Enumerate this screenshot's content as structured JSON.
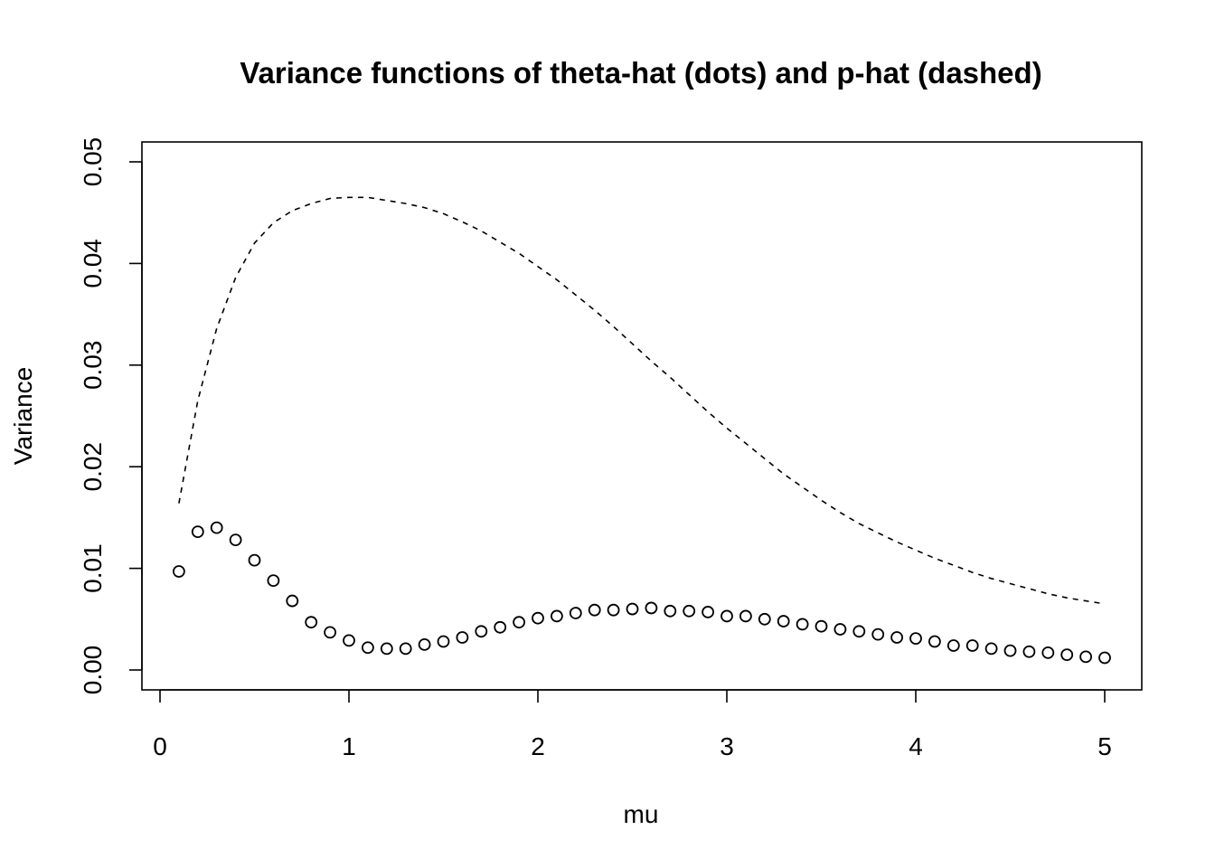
{
  "chart_data": {
    "type": "scatter",
    "title": "Variance functions of theta-hat (dots) and p-hat (dashed)",
    "xlabel": "mu",
    "ylabel": "Variance",
    "xlim": [
      0,
      5
    ],
    "ylim": [
      0,
      0.05
    ],
    "x_ticks": [
      0,
      1,
      2,
      3,
      4,
      5
    ],
    "y_ticks": [
      0.0,
      0.01,
      0.02,
      0.03,
      0.04,
      0.05
    ],
    "x_tick_labels": [
      "0",
      "1",
      "2",
      "3",
      "4",
      "5"
    ],
    "y_tick_labels": [
      "0.00",
      "0.01",
      "0.02",
      "0.03",
      "0.04",
      "0.05"
    ],
    "grid": false,
    "legend": "none",
    "series": [
      {
        "style": "points",
        "marker": "open-circle",
        "x": [
          0.1,
          0.2,
          0.3,
          0.4,
          0.5,
          0.6,
          0.7,
          0.8,
          0.9,
          1.0,
          1.1,
          1.2,
          1.3,
          1.4,
          1.5,
          1.6,
          1.7,
          1.8,
          1.9,
          2.0,
          2.1,
          2.2,
          2.3,
          2.4,
          2.5,
          2.6,
          2.7,
          2.8,
          2.9,
          3.0,
          3.1,
          3.2,
          3.3,
          3.4,
          3.5,
          3.6,
          3.7,
          3.8,
          3.9,
          4.0,
          4.1,
          4.2,
          4.3,
          4.4,
          4.5,
          4.6,
          4.7,
          4.8,
          4.9,
          5.0
        ],
        "y": [
          0.0097,
          0.0136,
          0.014,
          0.0128,
          0.0108,
          0.0088,
          0.0068,
          0.0047,
          0.0037,
          0.0029,
          0.0022,
          0.0021,
          0.0021,
          0.0025,
          0.0028,
          0.0032,
          0.0038,
          0.0042,
          0.0047,
          0.0051,
          0.0053,
          0.0056,
          0.0059,
          0.0059,
          0.006,
          0.0061,
          0.0058,
          0.0058,
          0.0057,
          0.0053,
          0.0053,
          0.005,
          0.0048,
          0.0045,
          0.0043,
          0.004,
          0.0038,
          0.0035,
          0.0032,
          0.0031,
          0.0028,
          0.0024,
          0.0024,
          0.0021,
          0.0019,
          0.0018,
          0.0017,
          0.0015,
          0.0013,
          0.0012
        ]
      },
      {
        "style": "dashed-line",
        "x": [
          0.1,
          0.2,
          0.3,
          0.4,
          0.5,
          0.6,
          0.7,
          0.8,
          0.9,
          1.0,
          1.1,
          1.2,
          1.3,
          1.4,
          1.5,
          1.6,
          1.7,
          1.8,
          1.9,
          2.0,
          2.1,
          2.2,
          2.3,
          2.4,
          2.5,
          2.6,
          2.7,
          2.8,
          2.9,
          3.0,
          3.1,
          3.2,
          3.3,
          3.4,
          3.5,
          3.6,
          3.7,
          3.8,
          3.9,
          4.0,
          4.1,
          4.2,
          4.3,
          4.4,
          4.5,
          4.6,
          4.7,
          4.8,
          4.9,
          5.0
        ],
        "y": [
          0.0164,
          0.0265,
          0.0336,
          0.0386,
          0.042,
          0.044,
          0.0452,
          0.0459,
          0.0464,
          0.0465,
          0.0465,
          0.0462,
          0.0459,
          0.0455,
          0.0449,
          0.0441,
          0.0432,
          0.0421,
          0.041,
          0.0397,
          0.0384,
          0.0369,
          0.0354,
          0.0338,
          0.0321,
          0.0304,
          0.0288,
          0.0271,
          0.0254,
          0.0238,
          0.0223,
          0.0208,
          0.0193,
          0.018,
          0.0167,
          0.0155,
          0.0144,
          0.0135,
          0.0126,
          0.0118,
          0.011,
          0.0103,
          0.0096,
          0.009,
          0.0085,
          0.008,
          0.0075,
          0.0071,
          0.0068,
          0.0065
        ]
      }
    ]
  }
}
